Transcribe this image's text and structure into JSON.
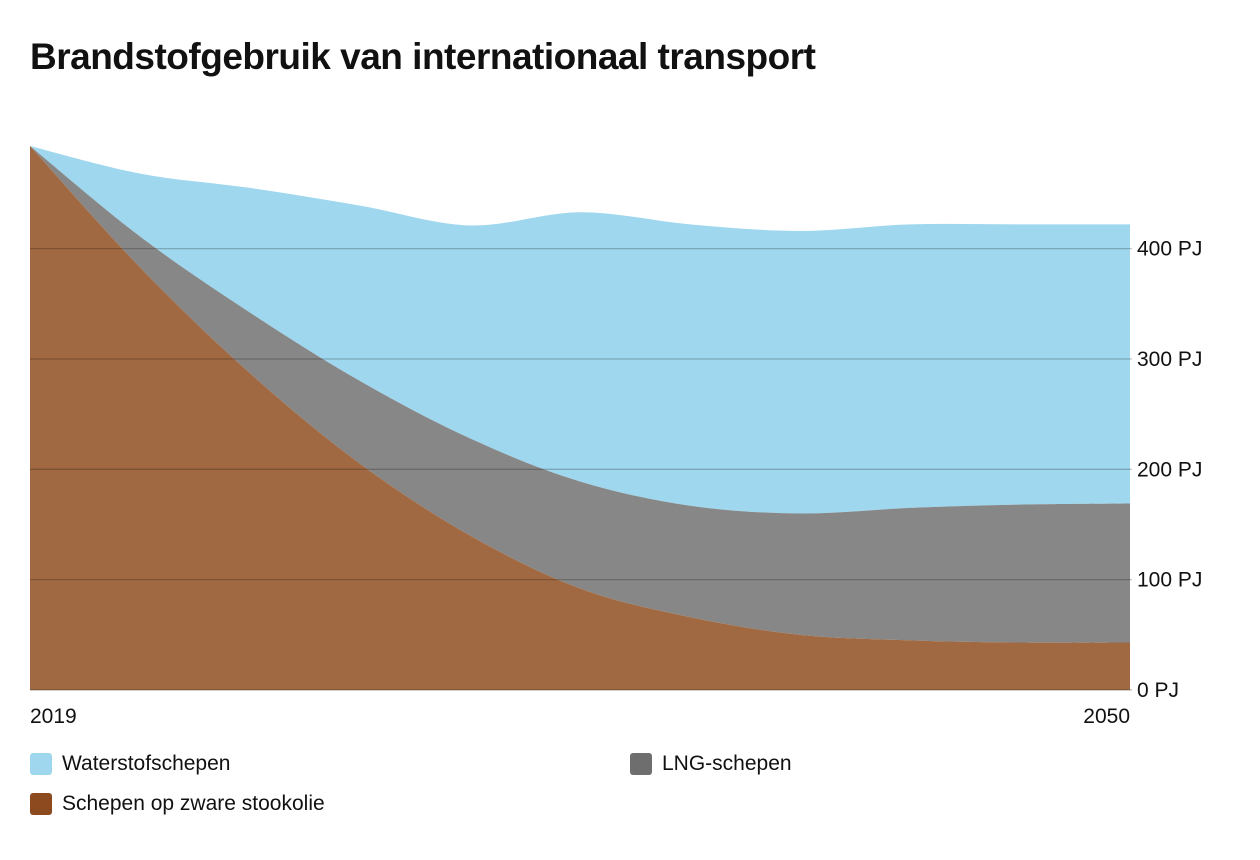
{
  "chart_data": {
    "type": "area",
    "stacked": true,
    "title": "Brandstofgebruik van internationaal transport",
    "x_tick_labels": [
      "2019",
      "2050"
    ],
    "x": [
      0,
      0.1,
      0.2,
      0.3,
      0.4,
      0.5,
      0.6,
      0.7,
      0.8,
      0.9,
      1.0
    ],
    "x_start_label": "2019",
    "x_end_label": "2050",
    "y_unit": "PJ",
    "ylim": [
      0,
      493
    ],
    "y_ticks": [
      0,
      100,
      200,
      300,
      400
    ],
    "y_tick_labels": [
      "0 PJ",
      "100 PJ",
      "200 PJ",
      "300 PJ",
      "400 PJ"
    ],
    "y_axis_position": "right",
    "grid": true,
    "legend_position": "bottom",
    "series": [
      {
        "name": "Schepen op zware stookolie",
        "color": "#a16941",
        "values": [
          493,
          383,
          287,
          205,
          140,
          92,
          66,
          50,
          45,
          43,
          43
        ]
      },
      {
        "name": "LNG-schepen",
        "color": "#878787",
        "values": [
          0,
          28,
          55,
          75,
          88,
          97,
          101,
          110,
          120,
          125,
          126
        ]
      },
      {
        "name": "Waterstofschepen",
        "color": "#9ed7ee",
        "values": [
          0,
          57,
          113,
          159,
          193,
          244,
          255,
          256,
          257,
          254,
          253
        ]
      }
    ]
  },
  "legend": [
    {
      "label": "Waterstofschepen",
      "color": "#9ed7ee"
    },
    {
      "label": "LNG-schepen",
      "color": "#6e6e6e"
    },
    {
      "label": "Schepen op zware stookolie",
      "color": "#8d4a1e"
    }
  ]
}
